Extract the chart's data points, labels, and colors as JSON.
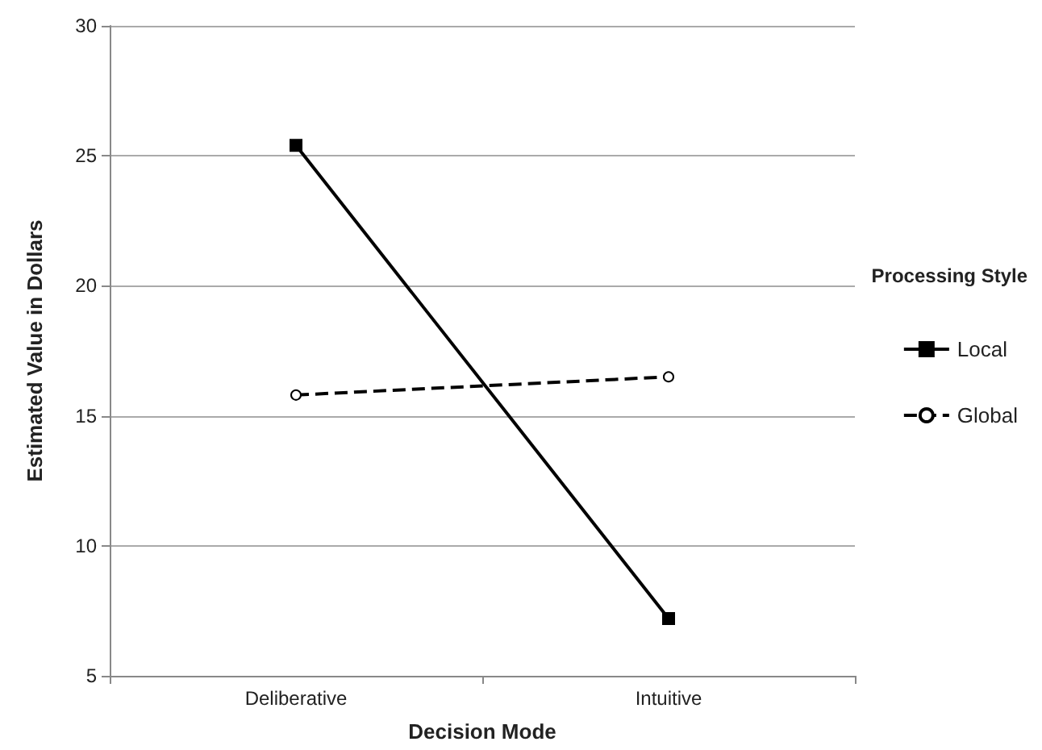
{
  "chart_data": {
    "type": "line",
    "xlabel": "Decision Mode",
    "ylabel": "Estimated Value in Dollars",
    "legend_title": "Processing Style",
    "categories": [
      "Deliberative",
      "Intuitive"
    ],
    "series": [
      {
        "name": "Local",
        "color": "#000000",
        "values": [
          25.4,
          7.2
        ],
        "marker": "square",
        "line_style": "solid"
      },
      {
        "name": "Global",
        "color": "#000000",
        "values": [
          15.8,
          16.5
        ],
        "marker": "circle",
        "line_style": "dashed"
      }
    ],
    "ylim": [
      5,
      30
    ],
    "yticks": [
      5,
      10,
      15,
      20,
      25,
      30
    ],
    "grid": "y",
    "legend": "right"
  }
}
